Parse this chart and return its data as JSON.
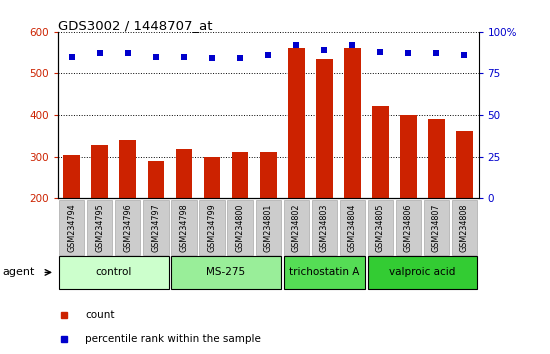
{
  "title": "GDS3002 / 1448707_at",
  "samples": [
    "GSM234794",
    "GSM234795",
    "GSM234796",
    "GSM234797",
    "GSM234798",
    "GSM234799",
    "GSM234800",
    "GSM234801",
    "GSM234802",
    "GSM234803",
    "GSM234804",
    "GSM234805",
    "GSM234806",
    "GSM234807",
    "GSM234808"
  ],
  "counts": [
    305,
    328,
    340,
    290,
    318,
    300,
    310,
    310,
    560,
    535,
    560,
    422,
    400,
    390,
    362
  ],
  "percentile_ranks": [
    85,
    87,
    87,
    85,
    85,
    84,
    84,
    86,
    92,
    89,
    92,
    88,
    87,
    87,
    86
  ],
  "ylim_left": [
    200,
    600
  ],
  "ylim_right": [
    0,
    100
  ],
  "yticks_left": [
    200,
    300,
    400,
    500,
    600
  ],
  "yticks_right": [
    0,
    25,
    50,
    75,
    100
  ],
  "bar_color": "#cc2200",
  "dot_color": "#0000cc",
  "plot_bg": "#ffffff",
  "groups": [
    {
      "label": "control",
      "start": 0,
      "end": 3,
      "color": "#ccffcc"
    },
    {
      "label": "MS-275",
      "start": 4,
      "end": 7,
      "color": "#99ee99"
    },
    {
      "label": "trichostatin A",
      "start": 8,
      "end": 10,
      "color": "#55dd55"
    },
    {
      "label": "valproic acid",
      "start": 11,
      "end": 14,
      "color": "#33cc33"
    }
  ],
  "ylabel_left_color": "#cc2200",
  "ylabel_right_color": "#0000cc",
  "tick_label_bg": "#cccccc",
  "tick_label_border": "#aaaaaa",
  "agent_label": "agent",
  "legend_count_label": "count",
  "legend_pct_label": "percentile rank within the sample"
}
